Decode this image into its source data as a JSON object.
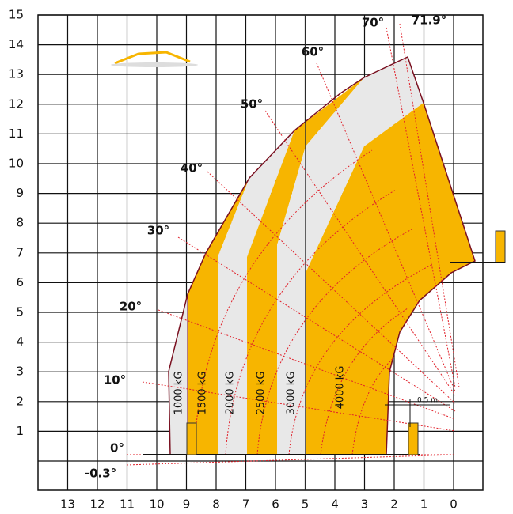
{
  "axes": {
    "xticks": [
      13,
      12,
      11,
      10,
      9,
      8,
      7,
      6,
      5,
      4,
      3,
      2,
      1,
      0
    ],
    "yticks": [
      1,
      2,
      3,
      4,
      5,
      6,
      7,
      8,
      9,
      10,
      11,
      12,
      13,
      14,
      15
    ]
  },
  "angles": [
    "0°",
    "-0.3°",
    "10°",
    "20°",
    "30°",
    "40°",
    "50°",
    "60°",
    "70°",
    "71.9°"
  ],
  "loads": [
    "1000 kG",
    "1500 kG",
    "2000 kG",
    "2500 kG",
    "3000 kG",
    "4000 kG"
  ],
  "dimension": "0.5 m"
}
